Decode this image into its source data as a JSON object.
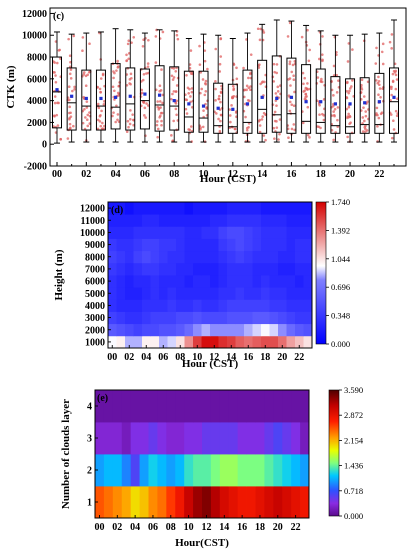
{
  "chart_data": [
    {
      "panel": "(c)",
      "type": "box",
      "xlabel": "Hour (CST)",
      "ylabel": "CTK (m)",
      "x": [
        0,
        1,
        2,
        3,
        4,
        5,
        6,
        7,
        8,
        9,
        10,
        11,
        12,
        13,
        14,
        15,
        16,
        17,
        18,
        19,
        20,
        21,
        22,
        23
      ],
      "xtick_labels": [
        "00",
        "02",
        "04",
        "06",
        "08",
        "10",
        "12",
        "14",
        "16",
        "18",
        "20",
        "22"
      ],
      "ylim": [
        -2000,
        12500
      ],
      "yticks": [
        -2000,
        0,
        2000,
        4000,
        6000,
        8000,
        10000,
        12000
      ],
      "q1": [
        1500,
        1300,
        1300,
        1300,
        1400,
        1300,
        1400,
        1200,
        1300,
        1100,
        1100,
        1000,
        1000,
        1000,
        1000,
        1100,
        1000,
        1000,
        1000,
        1000,
        1000,
        1000,
        1000,
        1000
      ],
      "median": [
        4800,
        3800,
        3500,
        3500,
        3400,
        3700,
        4000,
        3600,
        3500,
        2500,
        2400,
        1700,
        1600,
        2000,
        3200,
        2700,
        2800,
        2100,
        2000,
        1700,
        1600,
        1800,
        1800,
        3900
      ],
      "mean": [
        5000,
        4400,
        4200,
        4200,
        4300,
        4400,
        4600,
        4500,
        4000,
        3700,
        3500,
        3300,
        3200,
        3700,
        4300,
        4200,
        4300,
        3900,
        3900,
        3700,
        3700,
        3800,
        3900,
        4300
      ],
      "q3": [
        8000,
        7000,
        6800,
        6800,
        7400,
        7000,
        6900,
        7200,
        7100,
        6700,
        6700,
        5600,
        5500,
        6800,
        7700,
        8100,
        7900,
        7300,
        6900,
        6200,
        6000,
        6100,
        6500,
        7000
      ],
      "whisker_low": [
        100,
        200,
        200,
        200,
        200,
        200,
        200,
        200,
        200,
        200,
        200,
        200,
        200,
        200,
        200,
        200,
        200,
        200,
        200,
        200,
        200,
        200,
        200,
        200
      ],
      "whisker_high": [
        10300,
        10100,
        10200,
        10300,
        10600,
        10500,
        10200,
        10500,
        10400,
        9700,
        10100,
        10000,
        9700,
        10200,
        11000,
        11400,
        11300,
        10900,
        10400,
        10000,
        10000,
        10100,
        10200,
        11400
      ]
    },
    {
      "panel": "(d)",
      "type": "heatmap",
      "xlabel": "Hour (CST)",
      "ylabel": "Height (m)",
      "x": [
        0,
        1,
        2,
        3,
        4,
        5,
        6,
        7,
        8,
        9,
        10,
        11,
        12,
        13,
        14,
        15,
        16,
        17,
        18,
        19,
        20,
        21,
        22,
        23
      ],
      "xtick_labels": [
        "00",
        "02",
        "04",
        "06",
        "08",
        "10",
        "12",
        "14",
        "16",
        "18",
        "20",
        "22"
      ],
      "y": [
        1000,
        2000,
        3000,
        4000,
        5000,
        6000,
        7000,
        8000,
        9000,
        10000,
        11000,
        12000
      ],
      "colorbar": {
        "min": 0.0,
        "max": 1.74,
        "ticks": [
          "1.740",
          "1.392",
          "1.044",
          "0.696",
          "0.348",
          "0.000"
        ]
      },
      "values": [
        [
          0.95,
          1.0,
          0.85,
          0.85,
          1.0,
          1.0,
          0.85,
          0.9,
          1.05,
          1.3,
          1.55,
          1.7,
          1.7,
          1.6,
          1.55,
          1.45,
          1.4,
          1.45,
          1.5,
          1.5,
          1.4,
          1.25,
          1.15,
          1.05
        ],
        [
          0.55,
          0.5,
          0.45,
          0.4,
          0.45,
          0.45,
          0.5,
          0.5,
          0.55,
          0.65,
          0.8,
          0.85,
          0.8,
          0.8,
          0.8,
          0.8,
          0.85,
          0.9,
          0.95,
          0.9,
          0.8,
          0.65,
          0.55,
          0.5
        ],
        [
          0.4,
          0.35,
          0.3,
          0.3,
          0.35,
          0.4,
          0.4,
          0.4,
          0.45,
          0.45,
          0.5,
          0.45,
          0.45,
          0.45,
          0.5,
          0.5,
          0.5,
          0.55,
          0.55,
          0.5,
          0.45,
          0.4,
          0.35,
          0.35
        ],
        [
          0.3,
          0.25,
          0.25,
          0.25,
          0.3,
          0.3,
          0.3,
          0.35,
          0.3,
          0.3,
          0.35,
          0.3,
          0.3,
          0.35,
          0.4,
          0.4,
          0.4,
          0.4,
          0.4,
          0.35,
          0.35,
          0.3,
          0.3,
          0.3
        ],
        [
          0.3,
          0.25,
          0.2,
          0.2,
          0.25,
          0.3,
          0.25,
          0.3,
          0.25,
          0.25,
          0.25,
          0.25,
          0.25,
          0.3,
          0.3,
          0.35,
          0.3,
          0.3,
          0.35,
          0.3,
          0.3,
          0.25,
          0.25,
          0.25
        ],
        [
          0.3,
          0.25,
          0.2,
          0.25,
          0.25,
          0.3,
          0.25,
          0.25,
          0.25,
          0.2,
          0.25,
          0.25,
          0.2,
          0.25,
          0.3,
          0.3,
          0.3,
          0.25,
          0.3,
          0.25,
          0.25,
          0.25,
          0.2,
          0.25
        ],
        [
          0.35,
          0.3,
          0.25,
          0.3,
          0.35,
          0.35,
          0.3,
          0.3,
          0.25,
          0.25,
          0.2,
          0.2,
          0.2,
          0.25,
          0.3,
          0.3,
          0.3,
          0.25,
          0.25,
          0.25,
          0.2,
          0.2,
          0.25,
          0.25
        ],
        [
          0.4,
          0.35,
          0.3,
          0.4,
          0.45,
          0.4,
          0.35,
          0.3,
          0.3,
          0.25,
          0.25,
          0.25,
          0.25,
          0.3,
          0.35,
          0.4,
          0.35,
          0.3,
          0.3,
          0.3,
          0.25,
          0.25,
          0.3,
          0.3
        ],
        [
          0.35,
          0.3,
          0.3,
          0.35,
          0.4,
          0.4,
          0.35,
          0.35,
          0.3,
          0.25,
          0.25,
          0.25,
          0.25,
          0.35,
          0.4,
          0.45,
          0.4,
          0.35,
          0.3,
          0.3,
          0.3,
          0.25,
          0.3,
          0.3
        ],
        [
          0.25,
          0.25,
          0.25,
          0.3,
          0.3,
          0.3,
          0.3,
          0.3,
          0.3,
          0.25,
          0.25,
          0.3,
          0.3,
          0.4,
          0.45,
          0.45,
          0.4,
          0.35,
          0.3,
          0.3,
          0.3,
          0.25,
          0.25,
          0.25
        ],
        [
          0.2,
          0.2,
          0.2,
          0.2,
          0.25,
          0.25,
          0.2,
          0.2,
          0.2,
          0.2,
          0.2,
          0.2,
          0.25,
          0.25,
          0.3,
          0.3,
          0.3,
          0.3,
          0.25,
          0.25,
          0.25,
          0.2,
          0.2,
          0.2
        ],
        [
          0.15,
          0.15,
          0.1,
          0.15,
          0.15,
          0.15,
          0.15,
          0.15,
          0.15,
          0.1,
          0.15,
          0.15,
          0.15,
          0.15,
          0.2,
          0.2,
          0.2,
          0.2,
          0.15,
          0.15,
          0.15,
          0.15,
          0.15,
          0.15
        ]
      ]
    },
    {
      "panel": "(e)",
      "type": "heatmap",
      "xlabel": "Hour(CST)",
      "ylabel": "Number of clouds layer",
      "x": [
        0,
        1,
        2,
        3,
        4,
        5,
        6,
        7,
        8,
        9,
        10,
        11,
        12,
        13,
        14,
        15,
        16,
        17,
        18,
        19,
        20,
        21,
        22,
        23
      ],
      "xtick_labels": [
        "00",
        "02",
        "04",
        "06",
        "08",
        "10",
        "12",
        "14",
        "16",
        "18",
        "20",
        "22"
      ],
      "y": [
        1,
        2,
        3,
        4
      ],
      "colorbar": {
        "min": 0.0,
        "max": 3.59,
        "ticks": [
          "3.590",
          "2.872",
          "2.154",
          "1.436",
          "0.718",
          "0.000"
        ]
      },
      "values": [
        [
          2.5,
          2.4,
          2.3,
          2.2,
          2.0,
          2.1,
          2.3,
          2.4,
          2.6,
          2.8,
          3.1,
          3.3,
          3.4,
          3.2,
          3.0,
          2.9,
          2.8,
          2.8,
          2.9,
          3.0,
          3.1,
          3.0,
          2.9,
          2.8
        ],
        [
          1.0,
          1.1,
          1.1,
          0.9,
          0.6,
          1.0,
          1.2,
          1.1,
          1.0,
          1.1,
          1.3,
          1.4,
          1.4,
          1.5,
          1.6,
          1.6,
          1.5,
          1.5,
          1.5,
          1.4,
          1.3,
          1.2,
          1.1,
          1.0
        ],
        [
          0.3,
          0.3,
          0.3,
          0.2,
          0.4,
          0.4,
          0.5,
          0.4,
          0.3,
          0.3,
          0.4,
          0.4,
          0.5,
          0.5,
          0.5,
          0.5,
          0.4,
          0.4,
          0.4,
          0.5,
          0.6,
          0.5,
          0.4,
          0.2
        ],
        [
          0.1,
          0.1,
          0.1,
          0.1,
          0.1,
          0.1,
          0.1,
          0.1,
          0.1,
          0.1,
          0.1,
          0.1,
          0.1,
          0.1,
          0.1,
          0.1,
          0.1,
          0.1,
          0.1,
          0.1,
          0.1,
          0.1,
          0.1,
          0.1
        ]
      ]
    }
  ]
}
